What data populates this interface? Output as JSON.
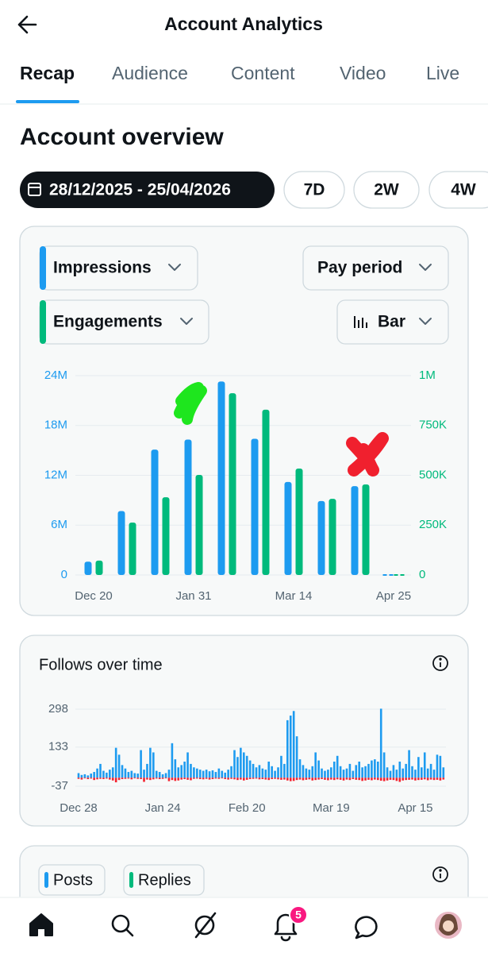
{
  "header": {
    "title": "Account Analytics"
  },
  "tabs": [
    "Recap",
    "Audience",
    "Content",
    "Video",
    "Live"
  ],
  "section_title": "Account overview",
  "date_range": "28/12/2025 - 25/04/2026",
  "range_chips": [
    "7D",
    "2W",
    "4W"
  ],
  "controls": {
    "period": "Pay period",
    "display": "Bar"
  },
  "posts_card": {
    "legend": [
      "Posts",
      "Replies"
    ]
  },
  "nav": {
    "notification_count": 5
  },
  "chart_data": [
    {
      "type": "bar",
      "categories": [
        "Dec 20",
        null,
        null,
        "Jan 31",
        null,
        null,
        "Mar 14",
        null,
        null,
        "Apr 25"
      ],
      "series": [
        {
          "name": "Impressions",
          "color": "#1d9bf0",
          "values": [
            1600000,
            7700000,
            15100000,
            16300000,
            23300000,
            16400000,
            11200000,
            8900000,
            10700000,
            0
          ]
        },
        {
          "name": "Engagements",
          "color": "#00ba7c",
          "axis": "y2",
          "values": [
            72000,
            263000,
            390000,
            502000,
            912000,
            829000,
            534000,
            382000,
            454000,
            0
          ]
        }
      ],
      "ylim": [
        0,
        24000000
      ],
      "yticks": [
        0,
        {
          "value": 6000000,
          "label": "6M"
        },
        {
          "value": 12000000,
          "label": "12M"
        },
        {
          "value": 18000000,
          "label": "18M"
        },
        {
          "value": 24000000,
          "label": "24M"
        }
      ],
      "y2lim": [
        0,
        1000000
      ],
      "y2ticks": [
        0,
        {
          "value": 250000,
          "label": "250K"
        },
        {
          "value": 500000,
          "label": "500K"
        },
        {
          "value": 750000,
          "label": "750K"
        },
        {
          "value": 1000000,
          "label": "1M"
        }
      ],
      "grid": true
    },
    {
      "type": "bar",
      "title": "Follows over time",
      "categories": [
        "Dec 28",
        null,
        null,
        null,
        null,
        null,
        null,
        null,
        null,
        null,
        null,
        null,
        null,
        null,
        null,
        null,
        null,
        null,
        null,
        null,
        null,
        null,
        null,
        null,
        null,
        null,
        null,
        "Jan 24",
        null,
        null,
        null,
        null,
        null,
        null,
        null,
        null,
        null,
        null,
        null,
        null,
        null,
        null,
        null,
        null,
        null,
        null,
        null,
        null,
        null,
        null,
        null,
        null,
        null,
        null,
        "Feb 20",
        null,
        null,
        null,
        null,
        null,
        null,
        null,
        null,
        null,
        null,
        null,
        null,
        null,
        null,
        null,
        null,
        null,
        null,
        null,
        null,
        null,
        null,
        null,
        null,
        null,
        null,
        "Mar 19",
        null,
        null,
        null,
        null,
        null,
        null,
        null,
        null,
        null,
        null,
        null,
        null,
        null,
        null,
        null,
        null,
        null,
        null,
        null,
        null,
        null,
        null,
        null,
        null,
        null,
        null,
        "Apr 15",
        null,
        null,
        null,
        null,
        null,
        null,
        null,
        null,
        null
      ],
      "series": [
        {
          "color": "#1d9bf0",
          "values": [
            20,
            12,
            15,
            10,
            18,
            25,
            40,
            60,
            30,
            22,
            35,
            45,
            130,
            100,
            55,
            40,
            25,
            30,
            20,
            18,
            120,
            35,
            60,
            130,
            110,
            30,
            25,
            15,
            20,
            35,
            150,
            80,
            45,
            55,
            70,
            110,
            60,
            45,
            40,
            35,
            30,
            35,
            28,
            32,
            25,
            40,
            30,
            22,
            35,
            50,
            120,
            90,
            130,
            110,
            95,
            75,
            60,
            45,
            55,
            40,
            35,
            70,
            50,
            30,
            45,
            95,
            60,
            250,
            270,
            290,
            180,
            80,
            55,
            40,
            35,
            50,
            110,
            75,
            40,
            30,
            35,
            45,
            70,
            95,
            50,
            35,
            40,
            60,
            30,
            55,
            70,
            45,
            50,
            60,
            75,
            80,
            70,
            300,
            110,
            45,
            30,
            55,
            35,
            70,
            40,
            60,
            120,
            50,
            35,
            90,
            45,
            110,
            40,
            60,
            35,
            100,
            95,
            45
          ]
        },
        {
          "color": "#f4212e",
          "values": [
            -5,
            -8,
            -3,
            -6,
            -4,
            -10,
            -7,
            -5,
            -6,
            -4,
            -8,
            -12,
            -20,
            -10,
            -6,
            -5,
            -4,
            -7,
            -3,
            -5,
            -6,
            -18,
            -8,
            -10,
            -7,
            -4,
            -6,
            -5,
            -3,
            -15,
            -10,
            -14,
            -12,
            -8,
            -6,
            -9,
            -11,
            -5,
            -4,
            -6,
            -7,
            -5,
            -8,
            -6,
            -4,
            -5,
            -3,
            -6,
            -8,
            -5,
            -7,
            -10,
            -8,
            -12,
            -9,
            -6,
            -5,
            -4,
            -7,
            -6,
            -8,
            -10,
            -6,
            -5,
            -7,
            -9,
            -8,
            -12,
            -15,
            -14,
            -10,
            -8,
            -11,
            -9,
            -7,
            -12,
            -10,
            -8,
            -6,
            -9,
            -11,
            -8,
            -10,
            -7,
            -9,
            -12,
            -8,
            -10,
            -6,
            -9,
            -10,
            -14,
            -12,
            -9,
            -11,
            -8,
            -10,
            -13,
            -15,
            -12,
            -9,
            -10,
            -14,
            -18,
            -12,
            -10,
            -9,
            -8,
            -12,
            -10,
            -9,
            -7,
            -11,
            -8,
            -10,
            -9,
            -12,
            -8
          ]
        }
      ],
      "ylim": [
        -37,
        320
      ],
      "yticks": [
        -37,
        133,
        298
      ],
      "grid": true
    }
  ]
}
